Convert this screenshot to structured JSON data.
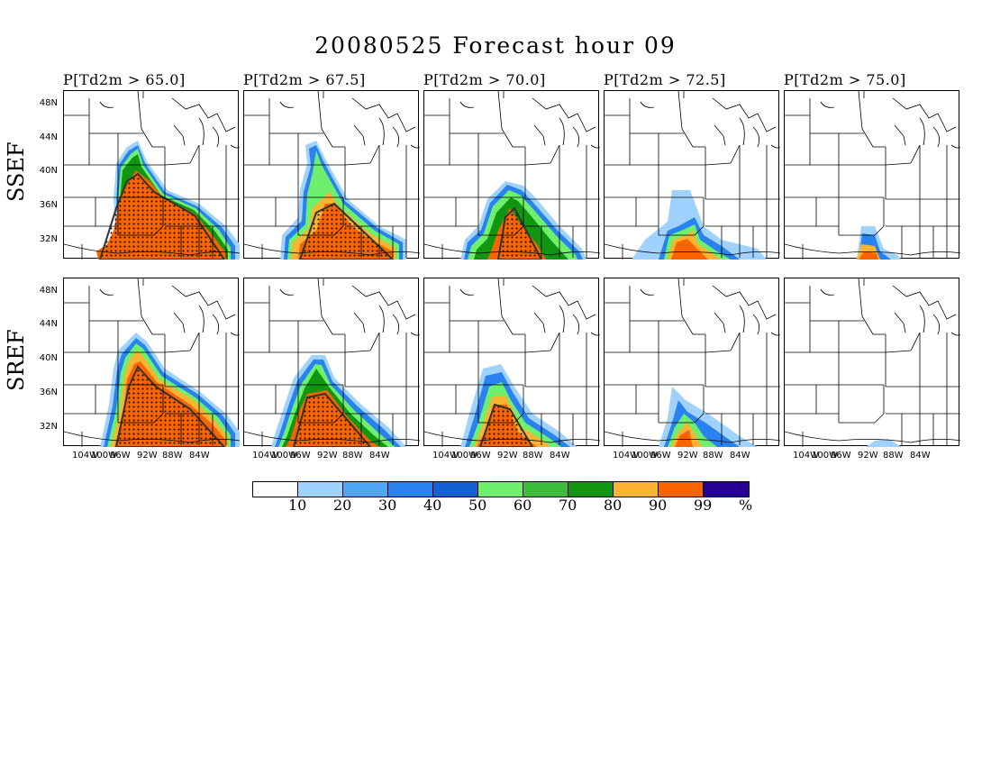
{
  "title": "20080525 Forecast hour 09",
  "columns": [
    "P[Td2m > 65.0]",
    "P[Td2m > 67.5]",
    "P[Td2m > 70.0]",
    "P[Td2m > 72.5]",
    "P[Td2m > 75.0]"
  ],
  "rows": [
    "SSEF",
    "SREF"
  ],
  "lat_labels": [
    "48N",
    "44N",
    "40N",
    "36N",
    "32N"
  ],
  "lon_labels": [
    "104W",
    "100W",
    "96W",
    "92W",
    "88W",
    "84W"
  ],
  "colorbar": {
    "labels": [
      "10",
      "20",
      "30",
      "40",
      "50",
      "60",
      "70",
      "80",
      "90",
      "99",
      "%"
    ],
    "colors": [
      "#ffffff",
      "#a0d2ff",
      "#50a5f5",
      "#2882f0",
      "#1460d2",
      "#6ef06e",
      "#3cbe3c",
      "#129612",
      "#fab432",
      "#fa6400",
      "#280096"
    ]
  },
  "fill_colors": {
    "p10": "#a0d2ff",
    "p20": "#50a5f5",
    "p30": "#2882f0",
    "p40": "#1460d2",
    "p50": "#6ef06e",
    "p60": "#3cbe3c",
    "p70": "#129612",
    "p80": "#fab432",
    "p90": "#fa6400"
  }
}
